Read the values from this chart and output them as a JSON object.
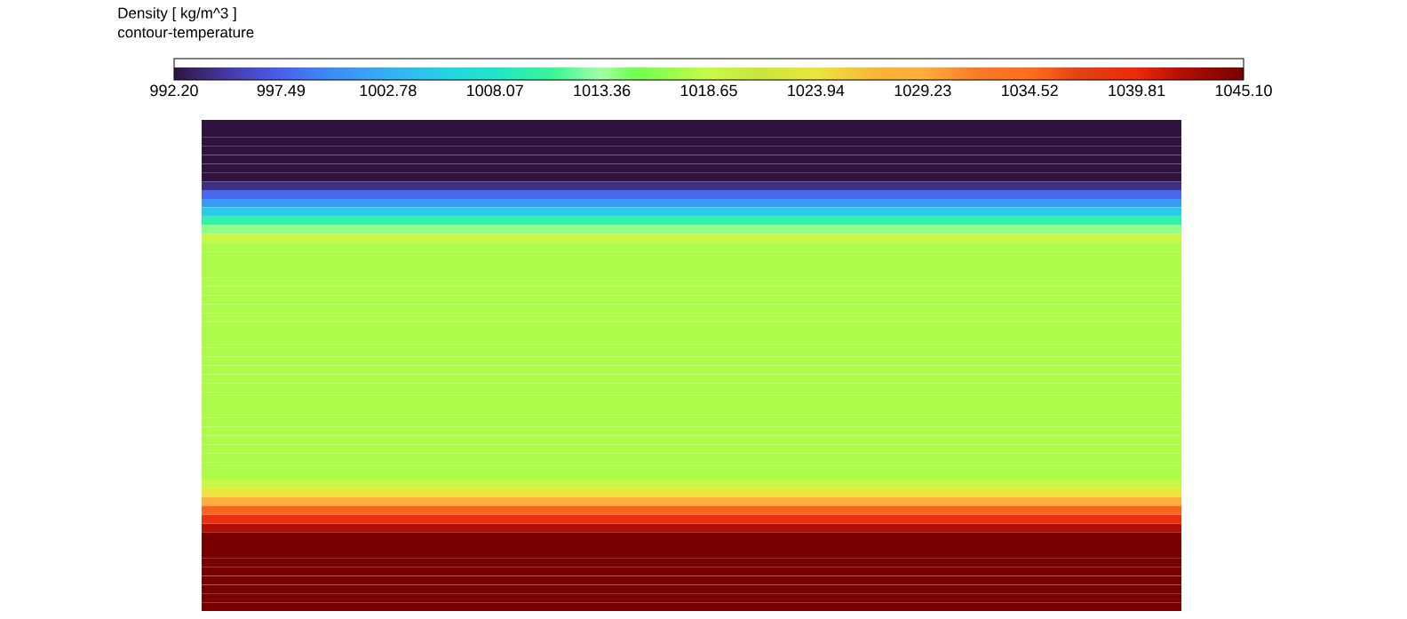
{
  "chart_data": {
    "type": "heatmap",
    "title": "Density [ kg/m^3 ]",
    "subtitle": "contour-temperature",
    "categories": [
      null
    ],
    "y_categories": [
      null,
      null,
      null,
      null,
      null,
      null,
      null,
      null,
      null,
      null,
      null,
      null,
      null,
      null,
      null,
      null,
      null,
      null,
      null,
      null,
      null,
      null,
      null,
      null,
      null,
      null,
      null,
      null,
      null,
      null,
      null,
      null,
      null,
      null,
      null,
      null,
      null,
      null,
      null,
      null,
      null,
      null,
      null,
      null,
      null,
      null,
      null,
      null,
      null,
      null,
      null,
      null,
      null,
      null,
      null,
      null
    ],
    "cells": [
      [
        992.2
      ],
      [
        992.2
      ],
      [
        992.2
      ],
      [
        992.2
      ],
      [
        992.2
      ],
      [
        992.2
      ],
      [
        992.2
      ],
      [
        994
      ],
      [
        998
      ],
      [
        1001
      ],
      [
        1005
      ],
      [
        1010
      ],
      [
        1014
      ],
      [
        1019
      ],
      [
        1017.5
      ],
      [
        1017.5
      ],
      [
        1017.5
      ],
      [
        1017.5
      ],
      [
        1017.5
      ],
      [
        1017.5
      ],
      [
        1017.5
      ],
      [
        1017.5
      ],
      [
        1017.5
      ],
      [
        1017.5
      ],
      [
        1017.5
      ],
      [
        1017.5
      ],
      [
        1017.5
      ],
      [
        1017.5
      ],
      [
        1017.5
      ],
      [
        1017.5
      ],
      [
        1017.5
      ],
      [
        1017.5
      ],
      [
        1017.5
      ],
      [
        1017.5
      ],
      [
        1017.5
      ],
      [
        1017.5
      ],
      [
        1017.5
      ],
      [
        1017.5
      ],
      [
        1017.5
      ],
      [
        1017.5
      ],
      [
        1017.5
      ],
      [
        1019
      ],
      [
        1024
      ],
      [
        1029
      ],
      [
        1035
      ],
      [
        1039
      ],
      [
        1042
      ],
      [
        1045.1
      ],
      [
        1045.1
      ],
      [
        1045.1
      ],
      [
        1045.1
      ],
      [
        1045.1
      ],
      [
        1045.1
      ],
      [
        1045.1
      ],
      [
        1045.1
      ],
      [
        1045.1
      ]
    ],
    "clim": [
      992.2,
      1045.1
    ],
    "cticks": [
      {
        "value": 992.2,
        "label": "992.20"
      },
      {
        "value": 997.49,
        "label": "997.49"
      },
      {
        "value": 1002.78,
        "label": "1002.78"
      },
      {
        "value": 1008.07,
        "label": "1008.07"
      },
      {
        "value": 1013.36,
        "label": "1013.36"
      },
      {
        "value": 1018.65,
        "label": "1018.65"
      },
      {
        "value": 1023.94,
        "label": "1023.94"
      },
      {
        "value": 1029.23,
        "label": "1029.23"
      },
      {
        "value": 1034.52,
        "label": "1034.52"
      },
      {
        "value": 1039.81,
        "label": "1039.81"
      },
      {
        "value": 1045.1,
        "label": "1045.10"
      }
    ]
  }
}
